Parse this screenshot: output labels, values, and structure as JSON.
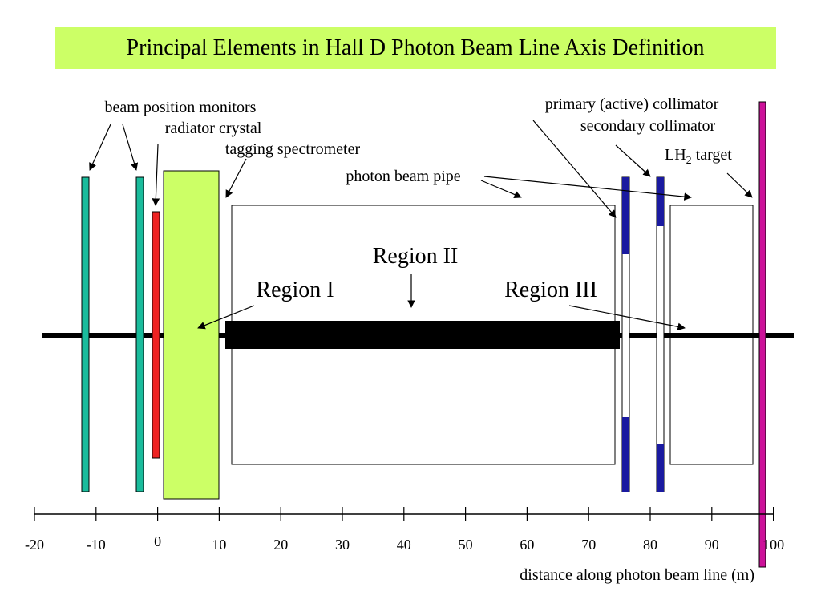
{
  "title": "Principal Elements in Hall D Photon Beam Line Axis Definition",
  "labels": {
    "beam_position_monitors": "beam position monitors",
    "radiator_crystal": "radiator crystal",
    "tagging_spectrometer": "tagging spectrometer",
    "photon_beam_pipe": "photon beam pipe",
    "primary_collimator": "primary (active) collimator",
    "secondary_collimator": "secondary collimator",
    "lh2_target_prefix": "LH",
    "lh2_target_sub": "2",
    "lh2_target_suffix": " target",
    "region_1": "Region I",
    "region_2": "Region II",
    "region_3": "Region III"
  },
  "axis": {
    "label": "distance along photon beam line (m)",
    "range": [
      -20,
      100
    ],
    "ticks": [
      "-20",
      "-10",
      "0",
      "10",
      "20",
      "30",
      "40",
      "50",
      "60",
      "70",
      "80",
      "90",
      "100"
    ]
  },
  "colors": {
    "title_bg": "#ccff66",
    "bpm": "#1abc9c",
    "radiator": "#ee2222",
    "tagger": "#ccff66",
    "collimator": "#1a1aa0",
    "target_marker": "#cc1199"
  }
}
